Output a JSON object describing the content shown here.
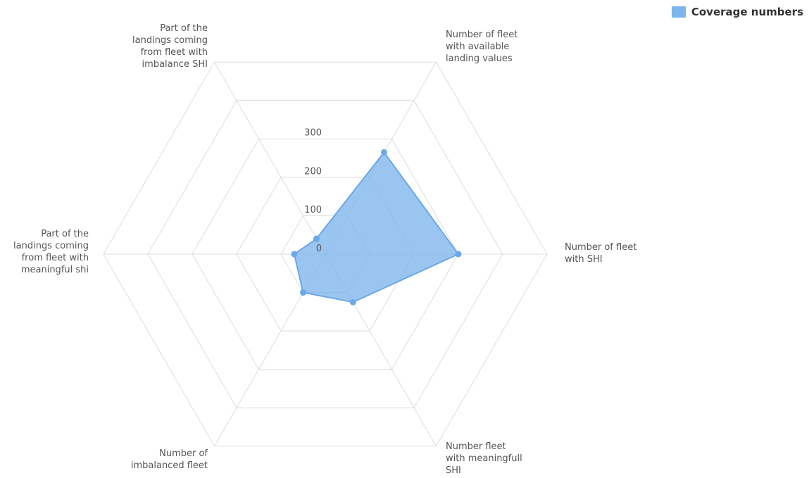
{
  "chart_data": {
    "type": "radar",
    "axes": [
      "Number of fleet with available landing values",
      "Number of fleet with SHI",
      "Number fleet with meaningfull SHI",
      "Number of imbalanced fleet",
      "Part of the landings coming from fleet with meaningful shi",
      "Part of the landings coming from fleet with imbalance SHI"
    ],
    "axis_label_lines": [
      [
        "Number of fleet",
        "with available",
        "landing values"
      ],
      [
        "Number of fleet",
        "with SHI"
      ],
      [
        "Number fleet",
        "with meaningfull",
        "SHI"
      ],
      [
        "Number of",
        "imbalanced fleet"
      ],
      [
        "Part of the",
        "landings coming",
        "from fleet with",
        "meaningful shi"
      ],
      [
        "Part of the",
        "landings coming",
        "from fleet with",
        "imbalance SHI"
      ]
    ],
    "series": [
      {
        "name": "Coverage numbers",
        "values": [
          265,
          300,
          125,
          100,
          70,
          40
        ]
      }
    ],
    "radial_ticks": [
      "0",
      "100",
      "200",
      "300"
    ],
    "tick_values": [
      0,
      100,
      200,
      300,
      400,
      500
    ],
    "range": [
      0,
      500
    ],
    "grid": true,
    "legend_position": "top-right",
    "colors": {
      "fill": "#7cb5ec",
      "stroke": "#6aa8e6",
      "grid": "#dddddd"
    }
  }
}
